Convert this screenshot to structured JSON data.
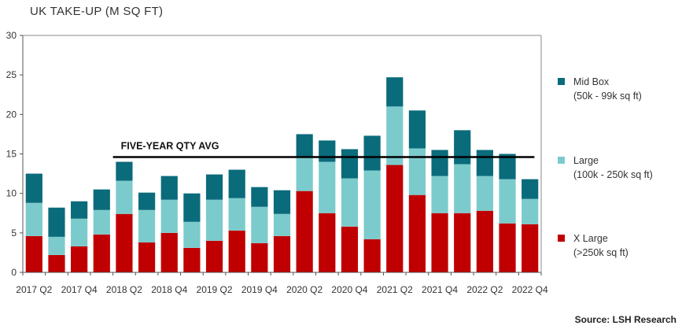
{
  "chart_data": {
    "type": "bar",
    "stacked": true,
    "title": "UK TAKE-UP (M SQ FT)",
    "source": "Source: LSH Research",
    "categories": [
      "2017 Q2",
      "2017 Q3",
      "2017 Q4",
      "2018 Q1",
      "2018 Q2",
      "2018 Q3",
      "2018 Q4",
      "2019 Q1",
      "2019 Q2",
      "2019 Q3",
      "2019 Q4",
      "2020 Q1",
      "2020 Q2",
      "2020 Q3",
      "2020 Q4",
      "2021 Q1",
      "2021 Q2",
      "2021 Q3",
      "2021 Q4",
      "2022 Q1",
      "2022 Q2",
      "2022 Q3",
      "2022 Q4"
    ],
    "tick_labels": [
      "2017 Q2",
      "2017 Q4",
      "2018 Q2",
      "2018 Q4",
      "2019 Q2",
      "2019 Q4",
      "2020 Q2",
      "2020 Q4",
      "2021 Q2",
      "2021 Q4",
      "2022 Q2",
      "2022 Q4"
    ],
    "ylim": [
      0,
      30
    ],
    "yticks": [
      0,
      5,
      10,
      15,
      20,
      25,
      30
    ],
    "grid": false,
    "series": [
      {
        "name": "X Large",
        "name_sub": "(>250k sq ft)",
        "color": "#c00000",
        "values": [
          4.6,
          2.2,
          3.3,
          4.8,
          7.4,
          3.8,
          5.0,
          3.1,
          4.0,
          5.3,
          3.7,
          4.6,
          10.3,
          7.5,
          5.8,
          4.2,
          13.6,
          9.8,
          7.5,
          7.5,
          7.8,
          6.2,
          6.1
        ]
      },
      {
        "name": "Large",
        "name_sub": "(100k - 250k sq ft)",
        "color": "#7ccbcc",
        "values": [
          4.2,
          2.3,
          3.5,
          3.1,
          4.2,
          4.1,
          4.2,
          3.3,
          5.2,
          4.1,
          4.6,
          2.8,
          4.2,
          6.5,
          6.1,
          8.7,
          7.4,
          5.9,
          4.7,
          6.2,
          4.4,
          5.6,
          3.2
        ]
      },
      {
        "name": "Mid Box",
        "name_sub": "(50k - 99k sq ft)",
        "color": "#0a6b7b",
        "values": [
          3.7,
          3.7,
          2.2,
          2.6,
          2.4,
          2.2,
          3.0,
          3.6,
          3.2,
          3.6,
          2.5,
          3.0,
          3.0,
          2.7,
          3.7,
          4.4,
          3.7,
          4.8,
          3.3,
          4.3,
          3.3,
          3.2,
          2.5
        ]
      }
    ],
    "legend_position": "right",
    "reference_line": {
      "label": "FIVE-YEAR QTY AVG",
      "value": 14.6
    }
  }
}
